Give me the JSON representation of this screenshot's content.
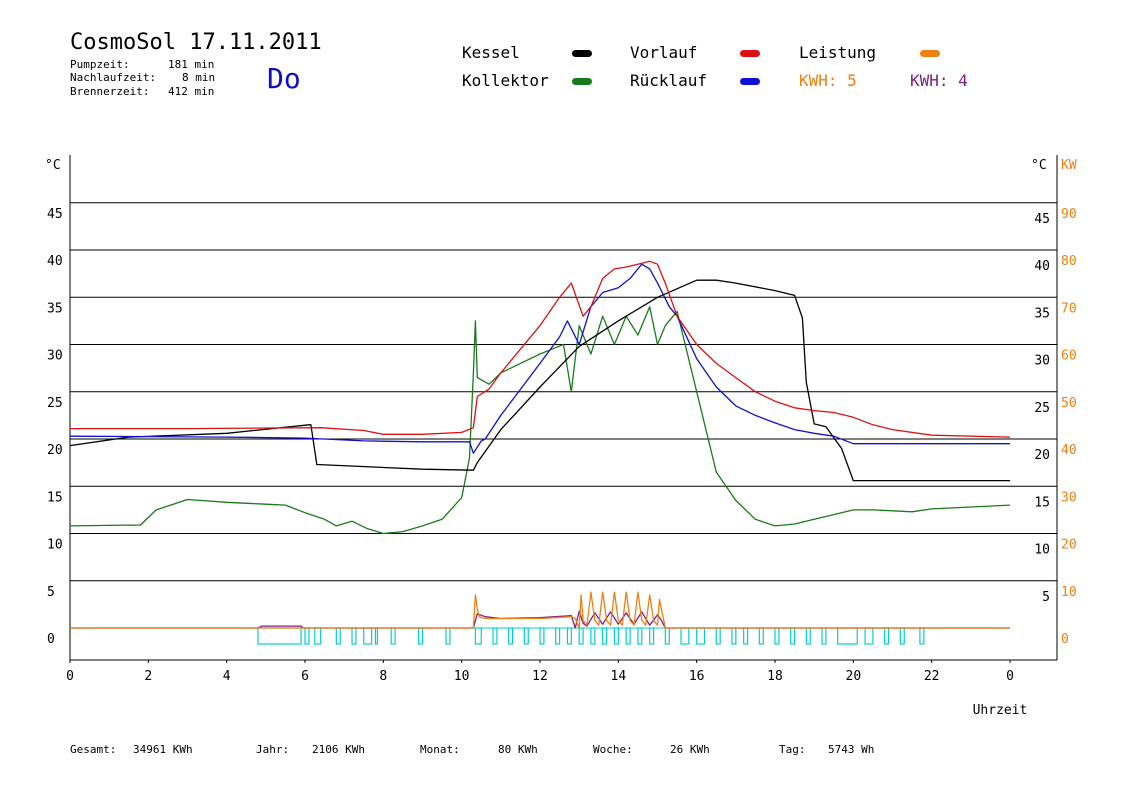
{
  "header": {
    "title": "CosmoSol 17.11.2011",
    "day": "Do",
    "stats": [
      {
        "label": "Pumpzeit:",
        "value": "181 min"
      },
      {
        "label": "Nachlaufzeit:",
        "value": "8 min"
      },
      {
        "label": "Brennerzeit:",
        "value": "412 min"
      }
    ]
  },
  "legend": {
    "kessel": {
      "label": "Kessel",
      "color": "#000000"
    },
    "kollektor": {
      "label": "Kollektor",
      "color": "#1a7a1a"
    },
    "vorlauf": {
      "label": "Vorlauf",
      "color": "#dd1111"
    },
    "ruecklauf": {
      "label": "Rücklauf",
      "color": "#1010d0"
    },
    "leistung": {
      "label": "Leistung",
      "color": "#ee7f10"
    },
    "kwh1": {
      "label": "KWH: 5",
      "color": "#ee7f10"
    },
    "kwh2": {
      "label": "KWH: 4",
      "color": "#802080"
    }
  },
  "footer": [
    {
      "label": "Gesamt:",
      "value": "34961 KWh"
    },
    {
      "label": "Jahr:",
      "value": "2106 KWh"
    },
    {
      "label": "Monat:",
      "value": "80 KWh"
    },
    {
      "label": "Woche:",
      "value": "26 KWh"
    },
    {
      "label": "Tag:",
      "value": "5743 Wh"
    }
  ],
  "chart_data": {
    "type": "line",
    "xlabel": "Uhrzeit",
    "ylabel_left": "°C",
    "ylabel_right_temp": "°C",
    "ylabel_right_power": "KW",
    "xlim": [
      0,
      24
    ],
    "ylim": [
      -3.5,
      50
    ],
    "grid": true,
    "x_ticks": [
      "0",
      "2",
      "4",
      "6",
      "8",
      "10",
      "12",
      "14",
      "16",
      "18",
      "20",
      "22",
      "0"
    ],
    "y_ticks_left": [
      "0",
      "5",
      "10",
      "15",
      "20",
      "25",
      "30",
      "35",
      "40",
      "45"
    ],
    "y_ticks_right_temp": [
      "5",
      "10",
      "15",
      "20",
      "25",
      "30",
      "35",
      "40",
      "45"
    ],
    "y_ticks_right_power": [
      "0",
      "10",
      "20",
      "30",
      "40",
      "50",
      "60",
      "70",
      "80",
      "90"
    ],
    "colors": {
      "kessel": "#000000",
      "kollektor": "#1a7a1a",
      "vorlauf": "#dd1111",
      "ruecklauf": "#1010d0",
      "leistung": "#ee7f10",
      "kwh": "#802080",
      "pump": "#00d0d0"
    },
    "series": [
      {
        "name": "Kessel",
        "key": "kessel",
        "x": [
          0,
          1.5,
          4,
          6.1,
          6.15,
          6.3,
          9,
          10.3,
          10.4,
          11,
          12,
          13,
          14,
          15,
          16,
          16.5,
          17,
          18,
          18.5,
          18.7,
          18.8,
          19,
          19.3,
          19.7,
          20,
          22,
          24
        ],
        "y": [
          19.3,
          20.2,
          20.6,
          21.5,
          21.5,
          17.3,
          16.8,
          16.7,
          17.5,
          21,
          25.5,
          29.8,
          32.5,
          35,
          36.8,
          36.8,
          36.5,
          35.7,
          35.2,
          32.8,
          26,
          21.6,
          21.3,
          19,
          15.6,
          15.6,
          15.6
        ]
      },
      {
        "name": "Vorlauf",
        "key": "vorlauf",
        "x": [
          0,
          3,
          6.4,
          7.5,
          8,
          9,
          10,
          10.3,
          10.4,
          10.7,
          11,
          11.5,
          12,
          12.5,
          12.8,
          13.1,
          13.3,
          13.6,
          13.9,
          14.2,
          14.5,
          14.8,
          15,
          15.2,
          15.5,
          16,
          16.5,
          17,
          17.5,
          18,
          18.5,
          19,
          19.5,
          20,
          20.5,
          21,
          22,
          24
        ],
        "y": [
          21.1,
          21.1,
          21.2,
          20.9,
          20.5,
          20.5,
          20.7,
          21.2,
          24.5,
          25.3,
          27,
          29.5,
          32,
          35,
          36.5,
          33,
          34,
          37,
          38,
          38.2,
          38.5,
          38.8,
          38.5,
          36.5,
          33,
          30,
          28,
          26.5,
          25,
          24,
          23.3,
          23,
          22.8,
          22.3,
          21.5,
          21,
          20.4,
          20.2
        ]
      },
      {
        "name": "Rücklauf",
        "key": "ruecklauf",
        "x": [
          0,
          4,
          6,
          7.5,
          9,
          10.2,
          10.3,
          10.5,
          10.6,
          11,
          12,
          12.5,
          12.7,
          13,
          13.3,
          13.6,
          14,
          14.3,
          14.6,
          14.8,
          15,
          15.3,
          15.5,
          16,
          16.5,
          17,
          17.5,
          18,
          18.5,
          19,
          19.5,
          20,
          24
        ],
        "y": [
          20.3,
          20.2,
          20.1,
          19.8,
          19.7,
          19.7,
          18.5,
          19.8,
          20,
          22.5,
          28,
          30.8,
          32.5,
          30,
          34,
          35.5,
          36,
          37,
          38.5,
          38,
          36.5,
          34,
          33,
          28.5,
          25.5,
          23.5,
          22.5,
          21.7,
          21,
          20.6,
          20.3,
          19.5,
          19.5
        ]
      },
      {
        "name": "Kollektor",
        "key": "kollektor",
        "x": [
          0,
          1.8,
          2.2,
          3,
          4,
          5,
          5.5,
          6,
          6.5,
          6.8,
          7.2,
          7.6,
          8,
          8.5,
          9,
          9.5,
          10,
          10.2,
          10.3,
          10.35,
          10.4,
          10.7,
          11,
          11.5,
          12,
          12.3,
          12.6,
          12.8,
          13,
          13.3,
          13.6,
          13.9,
          14.2,
          14.5,
          14.8,
          15,
          15.2,
          15.5,
          16,
          16.5,
          17,
          17.5,
          18,
          18.5,
          19,
          19.5,
          20,
          20.5,
          21,
          21.5,
          22,
          23,
          24
        ],
        "y": [
          10.8,
          10.9,
          12.5,
          13.6,
          13.3,
          13.1,
          13,
          12.2,
          11.5,
          10.8,
          11.3,
          10.5,
          10,
          10.2,
          10.8,
          11.5,
          13.8,
          18,
          27,
          32.5,
          26.5,
          25.8,
          27,
          28,
          29,
          29.5,
          30,
          25,
          32,
          29,
          33,
          30,
          33,
          31,
          34,
          30,
          32,
          33.5,
          25,
          16.5,
          13.5,
          11.5,
          10.8,
          11,
          11.5,
          12,
          12.5,
          12.5,
          12.4,
          12.3,
          12.6,
          12.8,
          13
        ]
      },
      {
        "name": "Leistung",
        "key": "leistung",
        "x": [
          0,
          10.3,
          10.35,
          10.4,
          10.45,
          10.6,
          11,
          12,
          12.8,
          12.9,
          13,
          13.05,
          13.1,
          13.2,
          13.3,
          13.4,
          13.5,
          13.6,
          13.7,
          13.8,
          13.9,
          14,
          14.1,
          14.2,
          14.3,
          14.4,
          14.5,
          14.6,
          14.7,
          14.8,
          14.9,
          15,
          15.05,
          15.2,
          24
        ],
        "y": [
          0,
          0,
          3.5,
          2,
          1.2,
          1,
          1,
          1,
          1.2,
          1,
          0,
          3.5,
          0.8,
          0.3,
          3.8,
          0.8,
          0.3,
          3.8,
          0.8,
          0.3,
          3.8,
          0.8,
          0.3,
          3.8,
          0.8,
          0.3,
          3.8,
          0.8,
          0.3,
          3.5,
          0.8,
          0.3,
          3,
          0,
          0
        ]
      },
      {
        "name": "KWH",
        "key": "kwh",
        "x": [
          0,
          4.8,
          4.9,
          5.9,
          5.95,
          10.3,
          10.4,
          10.6,
          11,
          12,
          12.8,
          12.9,
          13,
          13.1,
          13.2,
          13.4,
          13.6,
          13.8,
          14,
          14.2,
          14.4,
          14.6,
          14.8,
          15,
          15.1,
          15.2,
          24
        ],
        "y": [
          0,
          0,
          0.2,
          0.2,
          0,
          0,
          1.5,
          1.2,
          1,
          1.1,
          1.3,
          0,
          1.8,
          0.5,
          0.2,
          1.6,
          0.4,
          1.7,
          0.4,
          1.6,
          0.4,
          1.7,
          0.3,
          1.4,
          0.8,
          0,
          0
        ]
      }
    ]
  }
}
